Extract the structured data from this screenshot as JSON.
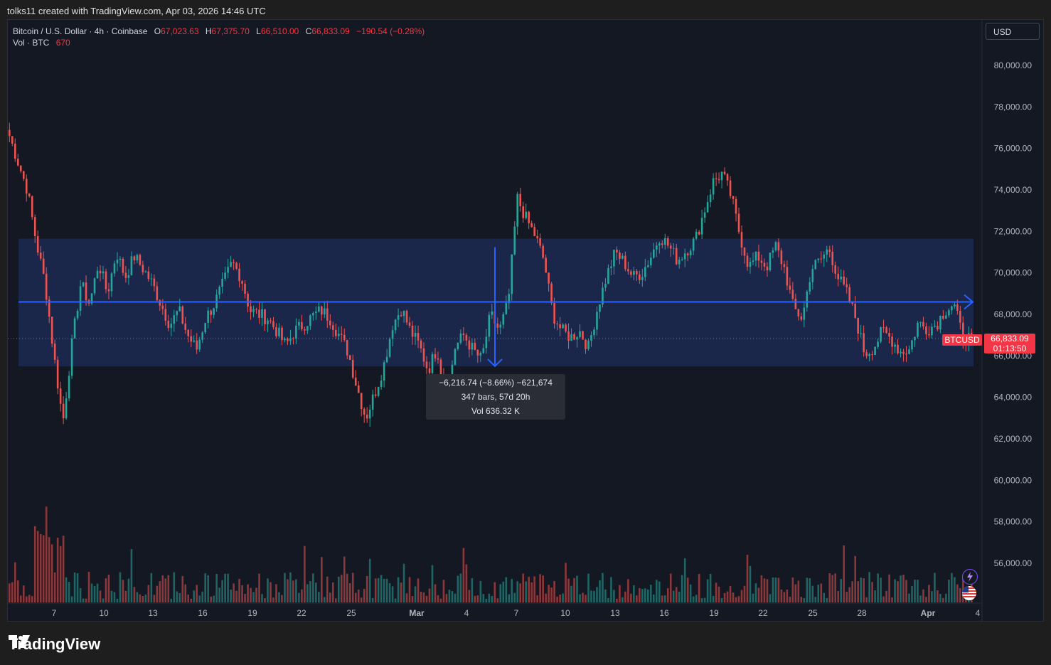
{
  "caption": "tolks11 created with TradingView.com, Apr 03, 2026 14:46 UTC",
  "legend": {
    "symbol": "Bitcoin / U.S. Dollar · 4h · Coinbase",
    "o_label": "O",
    "o_value": "67,023.63",
    "h_label": "H",
    "h_value": "67,375.70",
    "l_label": "L",
    "l_value": "66,510.00",
    "c_label": "C",
    "c_value": "66,833.09",
    "change": "−190.54 (−0.28%)",
    "vol_label": "Vol · BTC",
    "vol_value": "670"
  },
  "currency": "USD",
  "tooltip": {
    "line1": "−6,216.74 (−8.66%) −621,674",
    "line2": "347 bars, 57d 20h",
    "line3": "Vol 636.32 K"
  },
  "price_tag": {
    "symbol": "BTCUSD",
    "price": "66,833.09",
    "countdown": "01:13:50"
  },
  "brand": "TradingView",
  "colors": {
    "up": "#26a69a",
    "down": "#ef5350",
    "range_fill": "#1b2a52",
    "line": "#2962ff",
    "background": "#141822"
  },
  "chart_data": {
    "type": "candlestick",
    "title": "Bitcoin / U.S. Dollar · 4h · Coinbase",
    "y_axis": {
      "min": 54000,
      "max": 81000,
      "ticks": [
        "80,000.00",
        "78,000.00",
        "76,000.00",
        "74,000.00",
        "72,000.00",
        "70,000.00",
        "68,000.00",
        "66,000.00",
        "64,000.00",
        "62,000.00",
        "60,000.00",
        "58,000.00",
        "56,000.00"
      ]
    },
    "x_axis": {
      "labels": [
        "7",
        "10",
        "13",
        "16",
        "19",
        "22",
        "25",
        "Mar",
        "4",
        "7",
        "10",
        "13",
        "16",
        "19",
        "22",
        "25",
        "28",
        "Apr",
        "4"
      ]
    },
    "price_path": [
      [
        0,
        76600
      ],
      [
        2,
        74000
      ],
      [
        3,
        71500
      ],
      [
        4,
        69500
      ],
      [
        5,
        66000
      ],
      [
        6,
        62800
      ],
      [
        7,
        66500
      ],
      [
        8,
        69500
      ],
      [
        9,
        68500
      ],
      [
        10,
        70500
      ],
      [
        11,
        69000
      ],
      [
        12,
        71000
      ],
      [
        13,
        69800
      ],
      [
        14,
        70800
      ],
      [
        15,
        70200
      ],
      [
        16,
        69500
      ],
      [
        17,
        68500
      ],
      [
        18,
        67500
      ],
      [
        19,
        68200
      ],
      [
        20,
        67000
      ],
      [
        21,
        66300
      ],
      [
        22,
        67800
      ],
      [
        23,
        68500
      ],
      [
        24,
        69500
      ],
      [
        25,
        70500
      ],
      [
        26,
        69800
      ],
      [
        27,
        68200
      ],
      [
        28,
        68000
      ],
      [
        29,
        67800
      ],
      [
        30,
        67200
      ],
      [
        31,
        66500
      ],
      [
        32,
        67200
      ],
      [
        33,
        67500
      ],
      [
        34,
        67900
      ],
      [
        35,
        68200
      ],
      [
        36,
        67800
      ],
      [
        37,
        67000
      ],
      [
        38,
        66200
      ],
      [
        39,
        64500
      ],
      [
        40,
        63000
      ],
      [
        41,
        64200
      ],
      [
        42,
        65500
      ],
      [
        43,
        67500
      ],
      [
        44,
        68300
      ],
      [
        45,
        67200
      ],
      [
        46,
        66500
      ],
      [
        47,
        65300
      ],
      [
        48,
        66400
      ],
      [
        49,
        63800
      ],
      [
        50,
        66400
      ],
      [
        51,
        67000
      ],
      [
        52,
        66300
      ],
      [
        53,
        65800
      ],
      [
        54,
        68000
      ],
      [
        55,
        67200
      ],
      [
        56,
        68600
      ],
      [
        57,
        73600
      ],
      [
        58,
        72600
      ],
      [
        59,
        71800
      ],
      [
        60,
        70600
      ],
      [
        61,
        68000
      ],
      [
        62,
        67200
      ],
      [
        63,
        66900
      ],
      [
        64,
        67200
      ],
      [
        65,
        66400
      ],
      [
        66,
        68300
      ],
      [
        67,
        69800
      ],
      [
        68,
        71000
      ],
      [
        69,
        70500
      ],
      [
        70,
        69800
      ],
      [
        71,
        70000
      ],
      [
        72,
        70800
      ],
      [
        73,
        71800
      ],
      [
        74,
        71300
      ],
      [
        75,
        70600
      ],
      [
        76,
        71100
      ],
      [
        77,
        71600
      ],
      [
        78,
        73000
      ],
      [
        79,
        74400
      ],
      [
        80,
        74800
      ],
      [
        81,
        73700
      ],
      [
        82,
        71800
      ],
      [
        83,
        70300
      ],
      [
        84,
        70800
      ],
      [
        85,
        70300
      ],
      [
        86,
        71300
      ],
      [
        87,
        70200
      ],
      [
        88,
        68300
      ],
      [
        89,
        67800
      ],
      [
        90,
        70200
      ],
      [
        91,
        70600
      ],
      [
        92,
        71200
      ],
      [
        93,
        69800
      ],
      [
        94,
        69000
      ],
      [
        95,
        67800
      ],
      [
        96,
        66100
      ],
      [
        97,
        66400
      ],
      [
        98,
        67200
      ],
      [
        99,
        66800
      ],
      [
        100,
        66200
      ],
      [
        101,
        66300
      ],
      [
        102,
        67600
      ],
      [
        103,
        67300
      ],
      [
        104,
        67500
      ],
      [
        105,
        68200
      ],
      [
        106,
        68500
      ],
      [
        107,
        66900
      ],
      [
        108,
        66833
      ]
    ],
    "range_box": {
      "top_price": 71650,
      "bottom_price": 65500
    },
    "horizontal_line_price": 68600,
    "measure": {
      "change": "−6,216.74 (−8.66%)",
      "bars": "347 bars, 57d 20h",
      "volume": "Vol 636.32 K"
    },
    "current_price": 66833.09
  }
}
